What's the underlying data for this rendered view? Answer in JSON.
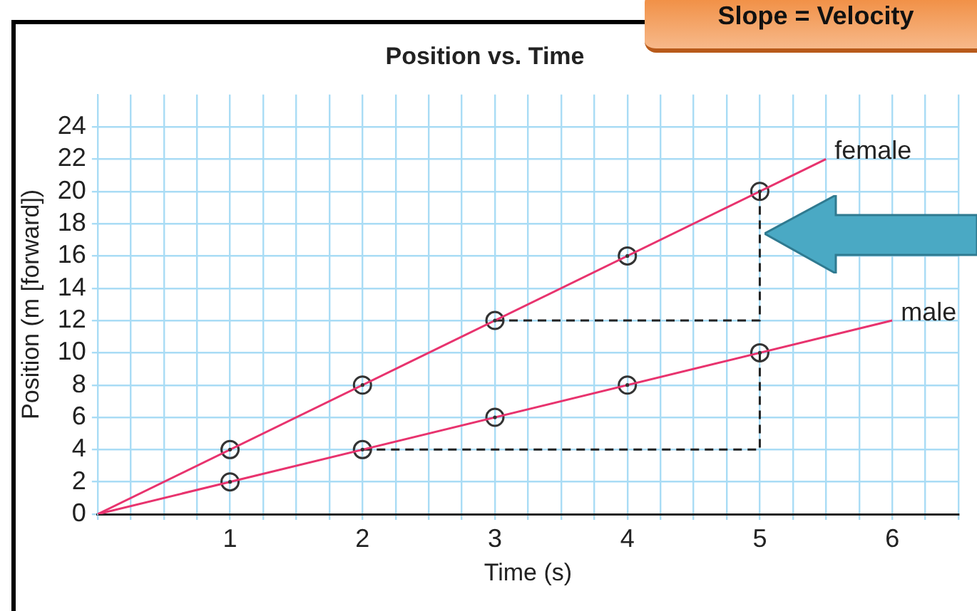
{
  "chart_data": {
    "type": "line",
    "title": "Position vs. Time",
    "xlabel": "Time (s)",
    "ylabel": "Position (m [forward])",
    "annotations": [
      "Slope = Velocity"
    ],
    "xlim": [
      0,
      6.5
    ],
    "xticks": [
      {
        "value": 0,
        "label": null
      },
      {
        "value": 0.25,
        "label": null
      },
      {
        "value": 0.5,
        "label": null
      },
      {
        "value": 0.75,
        "label": null
      },
      1,
      {
        "value": 1.25,
        "label": null
      },
      {
        "value": 1.5,
        "label": null
      },
      {
        "value": 1.75,
        "label": null
      },
      2,
      {
        "value": 2.25,
        "label": null
      },
      {
        "value": 2.5,
        "label": null
      },
      {
        "value": 2.75,
        "label": null
      },
      3,
      {
        "value": 3.25,
        "label": null
      },
      {
        "value": 3.5,
        "label": null
      },
      {
        "value": 3.75,
        "label": null
      },
      4,
      {
        "value": 4.25,
        "label": null
      },
      {
        "value": 4.5,
        "label": null
      },
      {
        "value": 4.75,
        "label": null
      },
      5,
      {
        "value": 5.25,
        "label": null
      },
      {
        "value": 5.5,
        "label": null
      },
      {
        "value": 5.75,
        "label": null
      },
      6,
      {
        "value": 6.25,
        "label": null
      },
      {
        "value": 6.5,
        "label": null
      }
    ],
    "ylim": [
      0,
      26
    ],
    "yticks": [
      0,
      2,
      4,
      6,
      8,
      10,
      12,
      14,
      16,
      18,
      20,
      22,
      24
    ],
    "grid": true,
    "legend": false,
    "marker": "none",
    "series": [
      {
        "name": "female",
        "type": "line",
        "color": "#e8336e",
        "x": [
          0,
          5.5
        ],
        "values": [
          0,
          22
        ]
      },
      {
        "name": "male",
        "type": "line",
        "color": "#e8336e",
        "x": [
          0,
          6
        ],
        "values": [
          0,
          12
        ]
      },
      {
        "type": "scatter",
        "marker": "circle",
        "color": "#333333",
        "x": [
          1,
          2,
          3,
          4,
          5
        ],
        "values": [
          4,
          8,
          12,
          16,
          20
        ]
      },
      {
        "type": "scatter",
        "marker": "circle",
        "color": "#333333",
        "x": [
          1,
          2,
          3,
          4,
          5
        ],
        "values": [
          2,
          4,
          6,
          8,
          10
        ]
      },
      {
        "type": "line",
        "line_style": "dashed",
        "color": "#222222",
        "x": [
          3,
          5,
          5
        ],
        "values": [
          12,
          12,
          20
        ]
      },
      {
        "type": "line",
        "line_style": "dashed",
        "color": "#222222",
        "x": [
          2,
          5,
          5
        ],
        "values": [
          4,
          4,
          10
        ]
      }
    ]
  }
}
